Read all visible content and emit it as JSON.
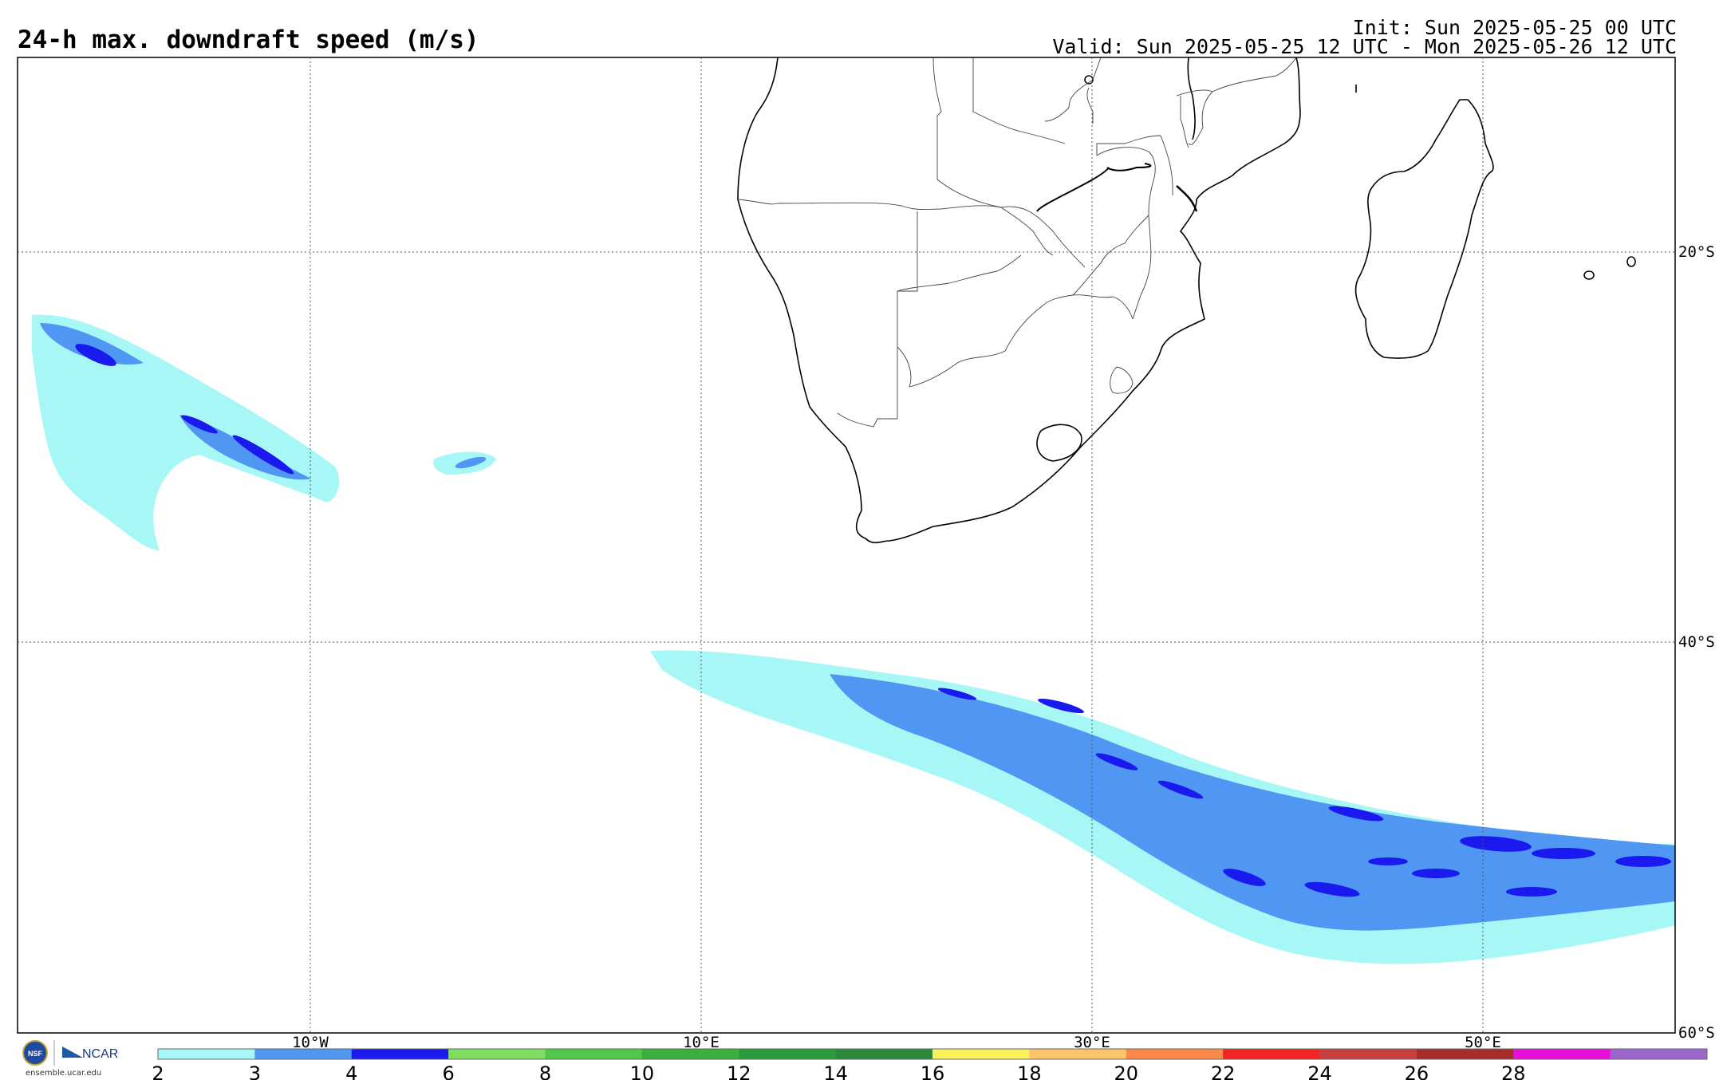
{
  "header": {
    "title": "24-h max. downdraft speed (m/s)",
    "init": "Init: Sun 2025-05-25 00 UTC",
    "valid": "Valid: Sun 2025-05-25 12 UTC - Mon 2025-05-26 12 UTC"
  },
  "map": {
    "lon_labels": [
      "10°W",
      "10°E",
      "30°E",
      "50°E"
    ],
    "lat_labels": [
      "20°S",
      "40°S",
      "60°S"
    ]
  },
  "colorbar": {
    "ticks": [
      "2",
      "3",
      "4",
      "6",
      "8",
      "10",
      "12",
      "14",
      "16",
      "18",
      "20",
      "22",
      "24",
      "26",
      "28"
    ],
    "colors": [
      "#a8f7f7",
      "#4f97f2",
      "#1a1aef",
      "#7ede62",
      "#52c84a",
      "#3aaf3e",
      "#2e9a3e",
      "#2a8a3a",
      "#f9f25c",
      "#fbc56a",
      "#f98a4c",
      "#f22525",
      "#c93e3e",
      "#a52d2d",
      "#e80fd9",
      "#9a66cc"
    ]
  },
  "logo": {
    "org1": "NSF",
    "org2": "NCAR",
    "url": "ensemble.ucar.edu"
  },
  "colors": {
    "cyan": "#a8f7f7",
    "medium_blue": "#4f97f2",
    "dark_blue": "#1a1aef",
    "grid": "#555555",
    "coast": "#000000"
  }
}
